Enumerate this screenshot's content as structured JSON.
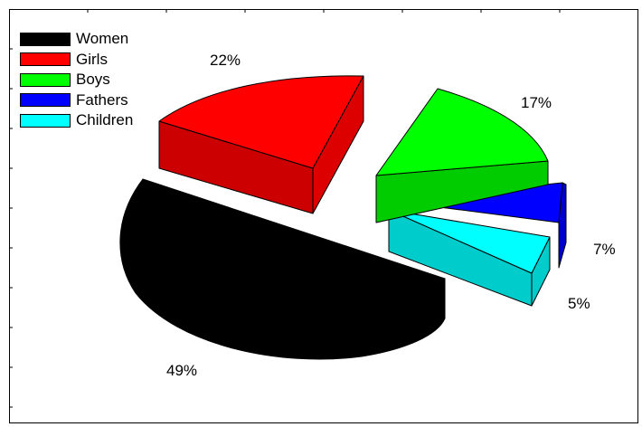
{
  "chart_data": {
    "type": "pie",
    "title": "",
    "categories": [
      "Women",
      "Girls",
      "Boys",
      "Fathers",
      "Children"
    ],
    "values": [
      49,
      22,
      17,
      7,
      5
    ],
    "value_labels": [
      "49%",
      "22%",
      "17%",
      "7%",
      "5%"
    ],
    "colors": [
      "#000000",
      "#ff0000",
      "#00ff00",
      "#0000ff",
      "#00ffff"
    ],
    "legend_position": "top-left",
    "style": "3d-exploded"
  }
}
